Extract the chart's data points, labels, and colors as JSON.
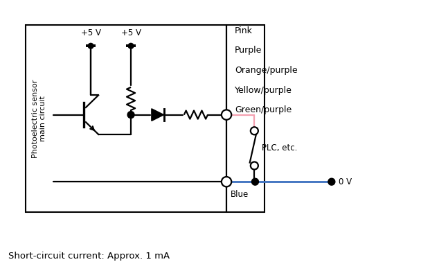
{
  "title": "Short-circuit current: Approx. 1 mA",
  "box_label": "Photoelectric sensor\nmain circuit",
  "wire_color": "black",
  "pink_color": "#F4A0B0",
  "blue_color": "#3B6FBF",
  "bg_color": "white",
  "labels_right": [
    "Pink",
    "Purple",
    "Orange/purple",
    "Yellow/purple",
    "Green/purple"
  ],
  "label_plc": "PLC, etc.",
  "label_0v": "0 V",
  "label_blue": "Blue",
  "label_v1": "+5 V",
  "label_v2": "+5 V",
  "figsize": [
    6.21,
    3.78
  ],
  "dpi": 100,
  "xlim": [
    0,
    10.5
  ],
  "ylim": [
    0,
    6.3
  ]
}
